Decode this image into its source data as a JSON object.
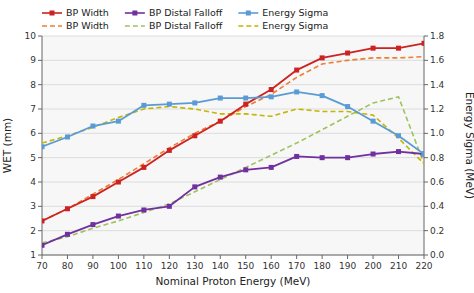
{
  "chart_data": {
    "type": "line",
    "xlabel": "Nominal Proton Energy (MeV)",
    "ylabel": "WET (mm)",
    "y2label": "Energy Sigma (MeV)",
    "x": [
      70,
      80,
      90,
      100,
      110,
      120,
      130,
      140,
      150,
      160,
      170,
      180,
      190,
      200,
      210,
      220
    ],
    "series": [
      {
        "name": "BP Width",
        "color": "#cc2222",
        "marker": "square",
        "line_style": "solid",
        "values": [
          2.4,
          2.9,
          3.4,
          4.0,
          4.6,
          5.3,
          5.9,
          6.5,
          7.2,
          7.8,
          8.6,
          9.1,
          9.3,
          9.5,
          9.5,
          9.7
        ]
      },
      {
        "name": "BP Distal Falloff",
        "color": "#7030a0",
        "marker": "square",
        "line_style": "solid",
        "values": [
          1.4,
          1.85,
          2.25,
          2.6,
          2.85,
          3.0,
          3.8,
          4.2,
          4.5,
          4.6,
          5.05,
          5.0,
          5.0,
          5.15,
          5.25,
          5.15
        ]
      },
      {
        "name": "Energy Sigma",
        "color": "#5b9bd5",
        "marker": "square",
        "line_style": "solid",
        "values": [
          5.45,
          5.85,
          6.3,
          6.5,
          7.15,
          7.2,
          7.25,
          7.45,
          7.45,
          7.5,
          7.7,
          7.55,
          7.1,
          6.5,
          5.9,
          5.15
        ]
      },
      {
        "name": "BP Width",
        "color": "#ed7d31",
        "line_style": "dashed",
        "axis": "y2",
        "values": [
          0.28,
          0.38,
          0.5,
          0.62,
          0.75,
          0.88,
          1.0,
          1.1,
          1.22,
          1.32,
          1.46,
          1.57,
          1.6,
          1.62,
          1.62,
          1.63
        ]
      },
      {
        "name": "BP Distal Falloff",
        "color": "#9dc35a",
        "line_style": "dashed",
        "axis": "y2",
        "values": [
          0.1,
          0.15,
          0.22,
          0.28,
          0.35,
          0.42,
          0.52,
          0.62,
          0.72,
          0.82,
          0.92,
          1.03,
          1.14,
          1.25,
          1.3,
          0.75
        ]
      },
      {
        "name": "Energy Sigma",
        "color": "#c5b400",
        "line_style": "dashed",
        "axis": "y2",
        "values": [
          0.92,
          0.98,
          1.05,
          1.13,
          1.2,
          1.22,
          1.2,
          1.16,
          1.16,
          1.14,
          1.2,
          1.18,
          1.18,
          1.15,
          0.96,
          0.75
        ]
      }
    ],
    "xlim": [
      70,
      220
    ],
    "ylim": [
      1.0,
      10.0
    ],
    "y2lim": [
      0.0,
      1.8
    ],
    "xticks": [
      70,
      80,
      90,
      100,
      110,
      120,
      130,
      140,
      150,
      160,
      170,
      180,
      190,
      200,
      210,
      220
    ],
    "yticks": [
      1,
      2,
      3,
      4,
      5,
      6,
      7,
      8,
      9,
      10
    ],
    "y2ticks": [
      {
        "value": 0.0,
        "label": "0.0"
      },
      0.2,
      0.4,
      0.6,
      0.8,
      {
        "value": 1.0,
        "label": "1.0"
      },
      1.2,
      1.4,
      1.6,
      1.8
    ],
    "grid": "y",
    "legend": "upper left"
  }
}
